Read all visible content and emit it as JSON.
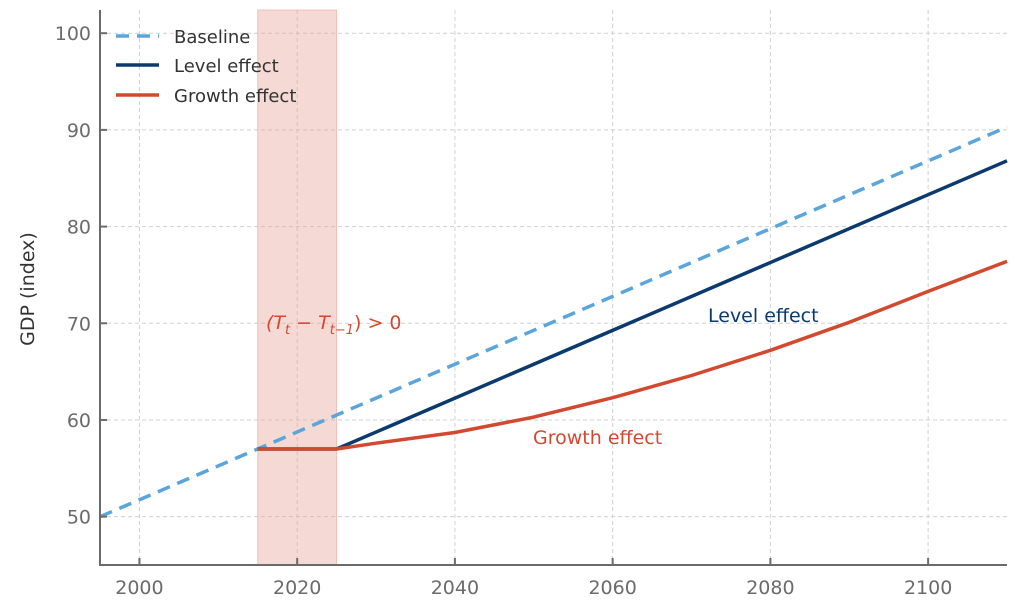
{
  "chart_data": {
    "type": "line",
    "title": "",
    "xlabel": "",
    "ylabel": "GDP (index)",
    "xlim": [
      1995,
      2110
    ],
    "ylim": [
      45,
      102.4
    ],
    "xticks": [
      2000,
      2020,
      2040,
      2060,
      2080,
      2100
    ],
    "yticks": [
      50,
      60,
      70,
      80,
      90,
      100
    ],
    "grid": true,
    "legend_position": "top-left",
    "shaded_region": {
      "x": [
        2015,
        2025
      ],
      "color": "#e8a598"
    },
    "series": [
      {
        "name": "Baseline",
        "style": "dashed",
        "color": "#5aa5dc",
        "x": [
          1995,
          2110
        ],
        "y": [
          50,
          90.3
        ]
      },
      {
        "name": "Level effect",
        "style": "solid",
        "color": "#0b3a6e",
        "x": [
          2015,
          2025,
          2110
        ],
        "y": [
          57,
          57,
          86.8
        ]
      },
      {
        "name": "Growth effect",
        "style": "solid",
        "color": "#d2492f",
        "x": [
          2015,
          2025,
          2030,
          2040,
          2050,
          2060,
          2070,
          2080,
          2090,
          2100,
          2110
        ],
        "y": [
          57,
          57,
          57.6,
          58.7,
          60.3,
          62.3,
          64.6,
          67.2,
          70.1,
          73.3,
          76.4
        ]
      }
    ],
    "annotations": [
      {
        "text": "(T_t − T_{t−1}) > 0",
        "main": "(T",
        "sub1": "t",
        "mid": " − T",
        "sub2": "t−1",
        "tail": ") > 0",
        "x": 2016,
        "y": 70,
        "color": "#d2492f"
      },
      {
        "text": "Level effect",
        "x": 2072,
        "y": 70.5,
        "color": "#0b3a6e"
      },
      {
        "text": "Growth effect",
        "x": 2050,
        "y": 58.1,
        "color": "#d2492f"
      }
    ]
  }
}
